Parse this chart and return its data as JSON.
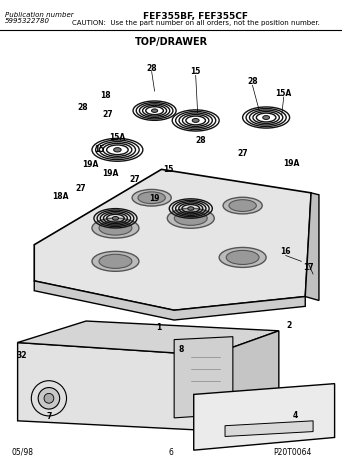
{
  "title_main": "FEF355BF, FEF355CF",
  "caution": "CAUTION:  Use the part number on all orders, not the position number.",
  "pub_number_label": "Publication number",
  "pub_number": "5995322780",
  "section_title": "TOP/DRAWER",
  "page_number": "6",
  "date": "05/98",
  "part_code": "P20T0064",
  "bg_color": "#ffffff",
  "line_color": "#000000",
  "text_color": "#000000",
  "fig_width": 3.5,
  "fig_height": 4.63,
  "dpi": 100
}
